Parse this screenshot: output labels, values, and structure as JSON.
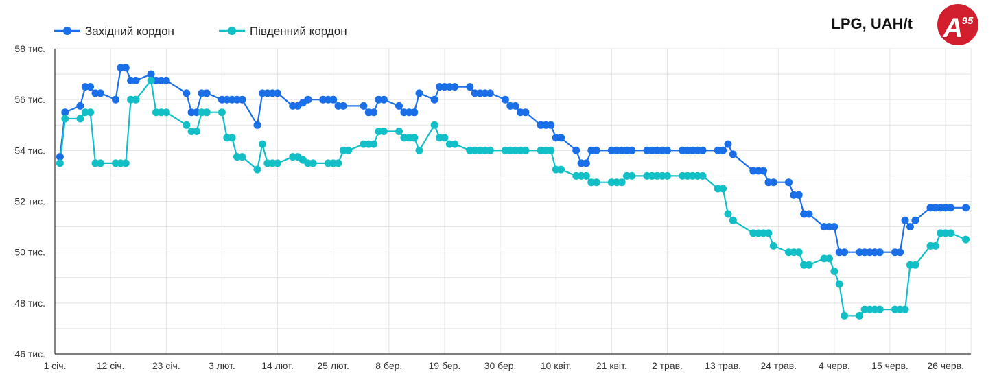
{
  "chart_data": {
    "type": "line",
    "title": "LPG, UAH/t",
    "xlabel": "",
    "ylabel": "",
    "ylim": [
      46000,
      58000
    ],
    "y_ticks": [
      46000,
      48000,
      50000,
      52000,
      54000,
      56000,
      58000
    ],
    "y_tick_labels": [
      "46 тис.",
      "48 тис.",
      "50 тис.",
      "52 тис.",
      "54 тис.",
      "56 тис.",
      "58 тис."
    ],
    "x_tick_labels": [
      "1 січ.",
      "12 січ.",
      "23 січ.",
      "3 лют.",
      "14 лют.",
      "25 лют.",
      "8 бер.",
      "19 бер.",
      "30 бер.",
      "10 квіт.",
      "21 квіт.",
      "2 трав.",
      "13 трав.",
      "24 трав.",
      "4 черв.",
      "15 черв.",
      "26 черв."
    ],
    "x_tick_days": [
      0,
      11,
      22,
      33,
      44,
      55,
      66,
      77,
      88,
      99,
      110,
      121,
      132,
      143,
      154,
      165,
      176
    ],
    "x_range_days": [
      0,
      181
    ],
    "grid": true,
    "legend_position": "top-left",
    "logo_text": "A95",
    "series": [
      {
        "name": "Західний кордон",
        "color": "#1a6ee8",
        "points": [
          [
            1,
            53750
          ],
          [
            2,
            55500
          ],
          [
            5,
            55750
          ],
          [
            6,
            56500
          ],
          [
            7,
            56500
          ],
          [
            8,
            56250
          ],
          [
            9,
            56250
          ],
          [
            12,
            56000
          ],
          [
            13,
            57250
          ],
          [
            14,
            57250
          ],
          [
            15,
            56750
          ],
          [
            16,
            56750
          ],
          [
            19,
            57000
          ],
          [
            20,
            56750
          ],
          [
            21,
            56750
          ],
          [
            22,
            56750
          ],
          [
            26,
            56250
          ],
          [
            27,
            55500
          ],
          [
            28,
            55500
          ],
          [
            29,
            56250
          ],
          [
            30,
            56250
          ],
          [
            33,
            56000
          ],
          [
            34,
            56000
          ],
          [
            35,
            56000
          ],
          [
            36,
            56000
          ],
          [
            37,
            56000
          ],
          [
            40,
            55000
          ],
          [
            41,
            56250
          ],
          [
            42,
            56250
          ],
          [
            43,
            56250
          ],
          [
            44,
            56250
          ],
          [
            47,
            55750
          ],
          [
            48,
            55750
          ],
          [
            49,
            55875
          ],
          [
            50,
            56000
          ],
          [
            53,
            56000
          ],
          [
            54,
            56000
          ],
          [
            55,
            56000
          ],
          [
            56,
            55750
          ],
          [
            57,
            55750
          ],
          [
            61,
            55750
          ],
          [
            62,
            55500
          ],
          [
            63,
            55500
          ],
          [
            64,
            56000
          ],
          [
            65,
            56000
          ],
          [
            68,
            55750
          ],
          [
            69,
            55500
          ],
          [
            70,
            55500
          ],
          [
            71,
            55500
          ],
          [
            72,
            56250
          ],
          [
            75,
            56000
          ],
          [
            76,
            56500
          ],
          [
            77,
            56500
          ],
          [
            78,
            56500
          ],
          [
            79,
            56500
          ],
          [
            82,
            56500
          ],
          [
            83,
            56250
          ],
          [
            84,
            56250
          ],
          [
            85,
            56250
          ],
          [
            86,
            56250
          ],
          [
            89,
            56000
          ],
          [
            90,
            55750
          ],
          [
            91,
            55750
          ],
          [
            92,
            55500
          ],
          [
            93,
            55500
          ],
          [
            96,
            55000
          ],
          [
            97,
            55000
          ],
          [
            98,
            55000
          ],
          [
            99,
            54500
          ],
          [
            100,
            54500
          ],
          [
            103,
            54000
          ],
          [
            104,
            53500
          ],
          [
            105,
            53500
          ],
          [
            106,
            54000
          ],
          [
            107,
            54000
          ],
          [
            110,
            54000
          ],
          [
            111,
            54000
          ],
          [
            112,
            54000
          ],
          [
            113,
            54000
          ],
          [
            114,
            54000
          ],
          [
            117,
            54000
          ],
          [
            118,
            54000
          ],
          [
            119,
            54000
          ],
          [
            120,
            54000
          ],
          [
            121,
            54000
          ],
          [
            124,
            54000
          ],
          [
            125,
            54000
          ],
          [
            126,
            54000
          ],
          [
            127,
            54000
          ],
          [
            128,
            54000
          ],
          [
            131,
            54000
          ],
          [
            132,
            54000
          ],
          [
            133,
            54250
          ],
          [
            134,
            53850
          ],
          [
            138,
            53200
          ],
          [
            139,
            53200
          ],
          [
            140,
            53200
          ],
          [
            141,
            52750
          ],
          [
            142,
            52750
          ],
          [
            145,
            52750
          ],
          [
            146,
            52250
          ],
          [
            147,
            52250
          ],
          [
            148,
            51500
          ],
          [
            149,
            51500
          ],
          [
            152,
            51000
          ],
          [
            153,
            51000
          ],
          [
            154,
            51000
          ],
          [
            155,
            50000
          ],
          [
            156,
            50000
          ],
          [
            159,
            50000
          ],
          [
            160,
            50000
          ],
          [
            161,
            50000
          ],
          [
            162,
            50000
          ],
          [
            163,
            50000
          ],
          [
            166,
            50000
          ],
          [
            167,
            50000
          ],
          [
            168,
            51250
          ],
          [
            169,
            51000
          ],
          [
            170,
            51250
          ],
          [
            173,
            51750
          ],
          [
            174,
            51750
          ],
          [
            175,
            51750
          ],
          [
            176,
            51750
          ],
          [
            177,
            51750
          ],
          [
            180,
            51750
          ]
        ]
      },
      {
        "name": "Південний кордон",
        "color": "#12bfc6",
        "points": [
          [
            1,
            53500
          ],
          [
            2,
            55250
          ],
          [
            5,
            55250
          ],
          [
            6,
            55500
          ],
          [
            7,
            55500
          ],
          [
            8,
            53500
          ],
          [
            9,
            53500
          ],
          [
            12,
            53500
          ],
          [
            13,
            53500
          ],
          [
            14,
            53500
          ],
          [
            15,
            56000
          ],
          [
            16,
            56000
          ],
          [
            19,
            56750
          ],
          [
            20,
            55500
          ],
          [
            21,
            55500
          ],
          [
            22,
            55500
          ],
          [
            26,
            55000
          ],
          [
            27,
            54750
          ],
          [
            28,
            54750
          ],
          [
            29,
            55500
          ],
          [
            30,
            55500
          ],
          [
            33,
            55500
          ],
          [
            34,
            54500
          ],
          [
            35,
            54500
          ],
          [
            36,
            53750
          ],
          [
            37,
            53750
          ],
          [
            40,
            53250
          ],
          [
            41,
            54250
          ],
          [
            42,
            53500
          ],
          [
            43,
            53500
          ],
          [
            44,
            53500
          ],
          [
            47,
            53750
          ],
          [
            48,
            53750
          ],
          [
            49,
            53625
          ],
          [
            50,
            53500
          ],
          [
            51,
            53500
          ],
          [
            54,
            53500
          ],
          [
            55,
            53500
          ],
          [
            56,
            53500
          ],
          [
            57,
            54000
          ],
          [
            58,
            54000
          ],
          [
            61,
            54250
          ],
          [
            62,
            54250
          ],
          [
            63,
            54250
          ],
          [
            64,
            54750
          ],
          [
            65,
            54750
          ],
          [
            68,
            54750
          ],
          [
            69,
            54500
          ],
          [
            70,
            54500
          ],
          [
            71,
            54500
          ],
          [
            72,
            54000
          ],
          [
            75,
            55000
          ],
          [
            76,
            54500
          ],
          [
            77,
            54500
          ],
          [
            78,
            54250
          ],
          [
            79,
            54250
          ],
          [
            82,
            54000
          ],
          [
            83,
            54000
          ],
          [
            84,
            54000
          ],
          [
            85,
            54000
          ],
          [
            86,
            54000
          ],
          [
            89,
            54000
          ],
          [
            90,
            54000
          ],
          [
            91,
            54000
          ],
          [
            92,
            54000
          ],
          [
            93,
            54000
          ],
          [
            96,
            54000
          ],
          [
            97,
            54000
          ],
          [
            98,
            54000
          ],
          [
            99,
            53250
          ],
          [
            100,
            53250
          ],
          [
            103,
            53000
          ],
          [
            104,
            53000
          ],
          [
            105,
            53000
          ],
          [
            106,
            52750
          ],
          [
            107,
            52750
          ],
          [
            110,
            52750
          ],
          [
            111,
            52750
          ],
          [
            112,
            52750
          ],
          [
            113,
            53000
          ],
          [
            114,
            53000
          ],
          [
            117,
            53000
          ],
          [
            118,
            53000
          ],
          [
            119,
            53000
          ],
          [
            120,
            53000
          ],
          [
            121,
            53000
          ],
          [
            124,
            53000
          ],
          [
            125,
            53000
          ],
          [
            126,
            53000
          ],
          [
            127,
            53000
          ],
          [
            128,
            53000
          ],
          [
            131,
            52500
          ],
          [
            132,
            52500
          ],
          [
            133,
            51500
          ],
          [
            134,
            51250
          ],
          [
            138,
            50750
          ],
          [
            139,
            50750
          ],
          [
            140,
            50750
          ],
          [
            141,
            50750
          ],
          [
            142,
            50250
          ],
          [
            145,
            50000
          ],
          [
            146,
            50000
          ],
          [
            147,
            50000
          ],
          [
            148,
            49500
          ],
          [
            149,
            49500
          ],
          [
            152,
            49750
          ],
          [
            153,
            49750
          ],
          [
            154,
            49250
          ],
          [
            155,
            48750
          ],
          [
            156,
            47500
          ],
          [
            159,
            47500
          ],
          [
            160,
            47750
          ],
          [
            161,
            47750
          ],
          [
            162,
            47750
          ],
          [
            163,
            47750
          ],
          [
            166,
            47750
          ],
          [
            167,
            47750
          ],
          [
            168,
            47750
          ],
          [
            169,
            49500
          ],
          [
            170,
            49500
          ],
          [
            173,
            50250
          ],
          [
            174,
            50250
          ],
          [
            175,
            50750
          ],
          [
            176,
            50750
          ],
          [
            177,
            50750
          ],
          [
            180,
            50500
          ]
        ]
      }
    ]
  }
}
